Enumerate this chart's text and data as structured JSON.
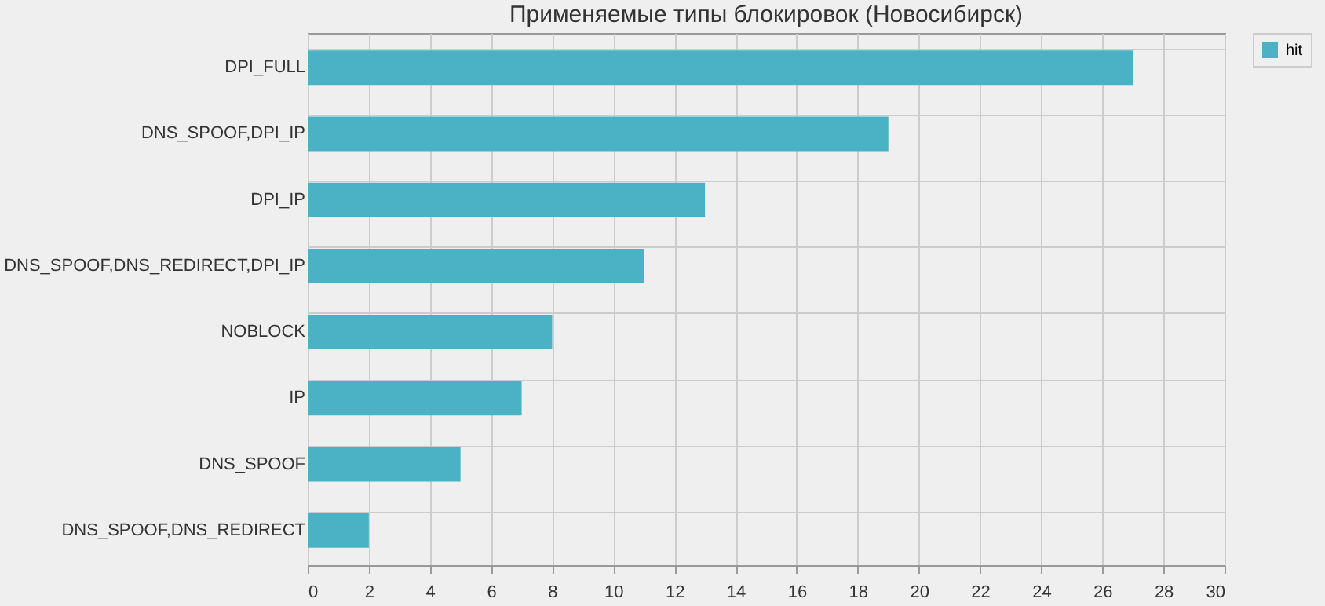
{
  "chart_data": {
    "type": "bar",
    "title": "Применяемые типы блокировок (Новосибирск)",
    "orientation": "horizontal",
    "categories": [
      "DPI_FULL",
      "DNS_SPOOF,DPI_IP",
      "DPI_IP",
      "DNS_SPOOF,DNS_REDIRECT,DPI_IP",
      "NOBLOCK",
      "IP",
      "DNS_SPOOF",
      "DNS_SPOOF,DNS_REDIRECT"
    ],
    "series": [
      {
        "name": "hit",
        "color": "#4bb2c5",
        "values": [
          27,
          19,
          13,
          11,
          8,
          7,
          5,
          2
        ]
      }
    ],
    "xlim": [
      0,
      30
    ],
    "xticks": [
      0,
      2,
      4,
      6,
      8,
      10,
      12,
      14,
      16,
      18,
      20,
      22,
      24,
      26,
      28,
      30
    ],
    "grid": true,
    "legend": "right"
  }
}
